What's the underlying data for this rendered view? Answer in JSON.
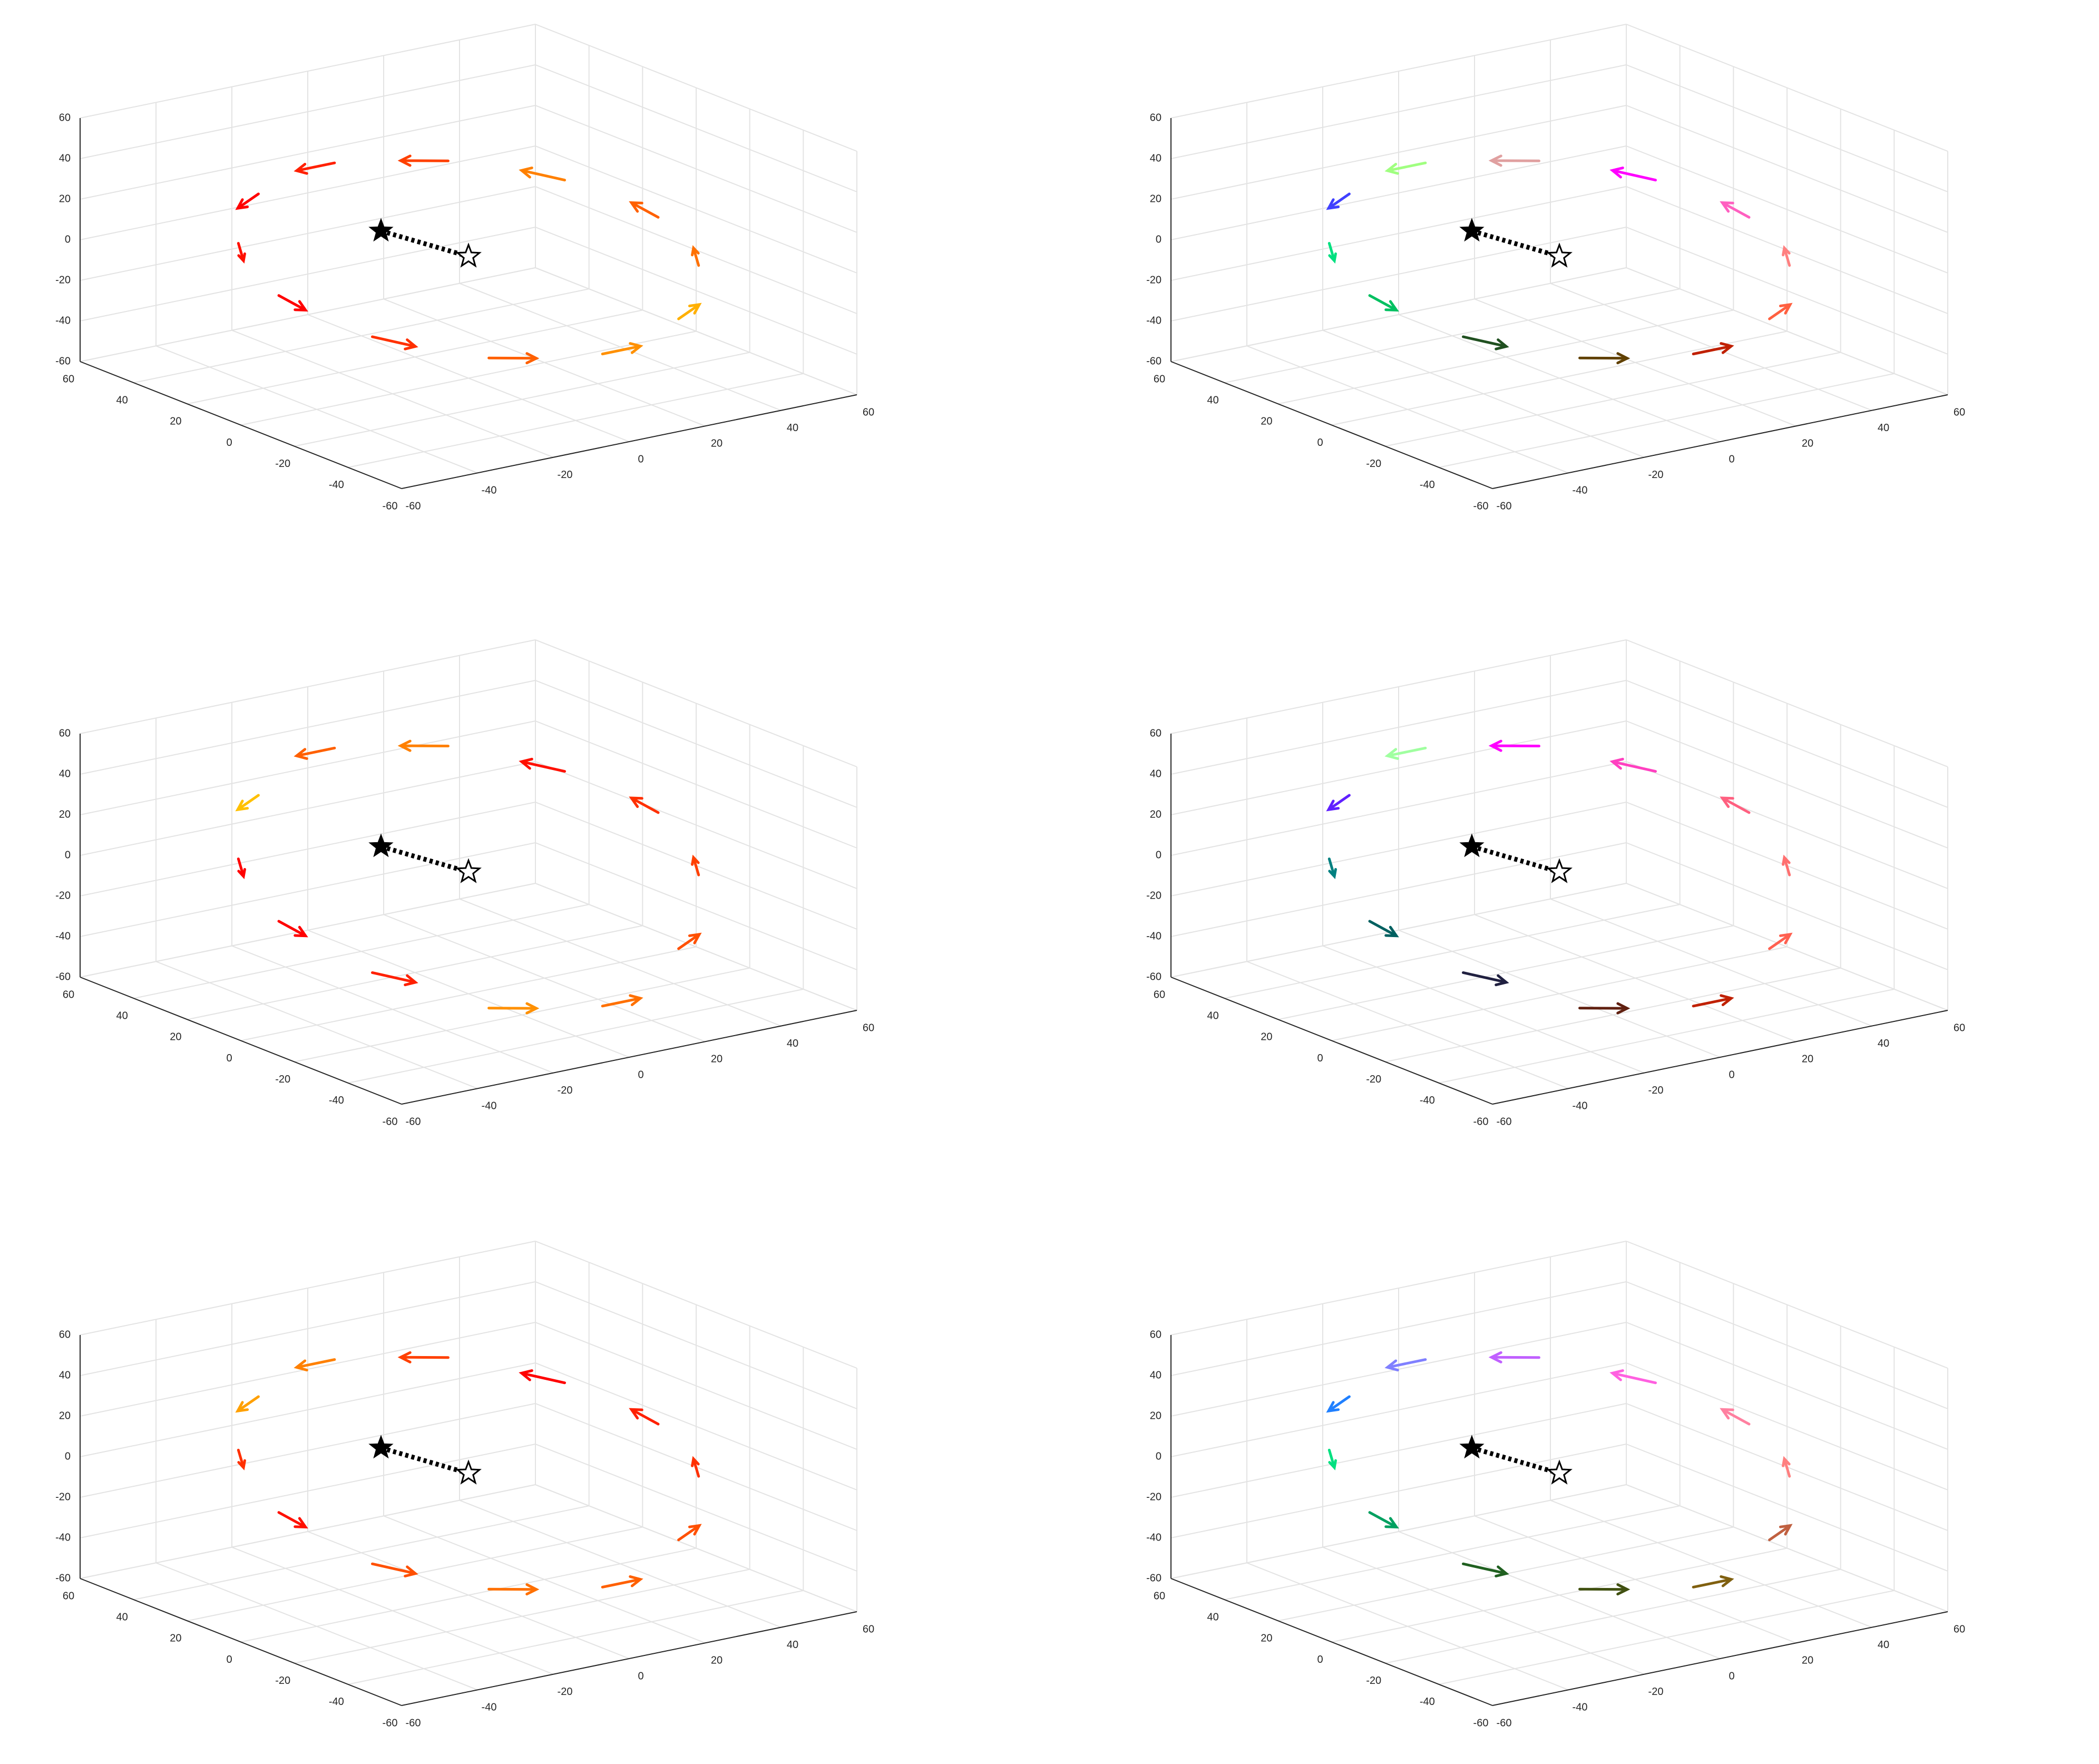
{
  "chart_data": [
    {
      "type": "quiver3",
      "grid": true,
      "xlim": [
        -60,
        60
      ],
      "ylim": [
        -60,
        60
      ],
      "zlim": [
        -60,
        60
      ],
      "xticks": [
        -60,
        -40,
        -20,
        0,
        20,
        40,
        60
      ],
      "yticks": [
        -60,
        -40,
        -20,
        0,
        20,
        40,
        60
      ],
      "zticks": [
        -60,
        -40,
        -20,
        0,
        20,
        40,
        60
      ],
      "start": [
        -4,
        27,
        0
      ],
      "end": [
        0,
        0,
        0
      ],
      "quiver": {
        "x": [
          50,
          43,
          25,
          0,
          -25,
          -43,
          -50,
          -43,
          -25,
          0,
          25,
          43
        ],
        "y": [
          0,
          25,
          43,
          50,
          43,
          25,
          0,
          -25,
          -43,
          -50,
          -43,
          -25
        ],
        "z": [
          0,
          8,
          15,
          20,
          18,
          10,
          0,
          -10,
          -18,
          -22,
          -18,
          -8
        ],
        "u": [
          0,
          -5,
          -9,
          -10,
          -9,
          -5,
          0,
          5,
          9,
          10,
          9,
          5
        ],
        "v": [
          10,
          9,
          5,
          0,
          -5,
          -9,
          -10,
          -9,
          -5,
          0,
          5,
          9
        ],
        "w": [
          2,
          2,
          1,
          0,
          -1,
          -2,
          -2,
          -2,
          -1,
          0,
          1,
          2
        ],
        "colors": [
          "#ff6000",
          "#ff8000",
          "#ff4000",
          "#ff2000",
          "#ff0000",
          "#ff1000",
          "#ff0000",
          "#ff3000",
          "#ff6000",
          "#ff9000",
          "#ffb000",
          "#ff7000"
        ]
      }
    },
    {
      "type": "quiver3",
      "grid": true,
      "xlim": [
        -60,
        60
      ],
      "ylim": [
        -60,
        60
      ],
      "zlim": [
        -60,
        60
      ],
      "xticks": [
        -60,
        -40,
        -20,
        0,
        20,
        40,
        60
      ],
      "yticks": [
        -60,
        -40,
        -20,
        0,
        20,
        40,
        60
      ],
      "zticks": [
        -60,
        -40,
        -20,
        0,
        20,
        40,
        60
      ],
      "start": [
        -4,
        27,
        0
      ],
      "end": [
        0,
        0,
        0
      ],
      "quiver": {
        "x": [
          50,
          43,
          25,
          0,
          -25,
          -43,
          -50,
          -43,
          -25,
          0,
          25,
          43
        ],
        "y": [
          0,
          25,
          43,
          50,
          43,
          25,
          0,
          -25,
          -43,
          -50,
          -43,
          -25
        ],
        "z": [
          0,
          8,
          15,
          20,
          18,
          10,
          0,
          -10,
          -18,
          -22,
          -18,
          -8
        ],
        "u": [
          0,
          -5,
          -9,
          -10,
          -9,
          -5,
          0,
          5,
          9,
          10,
          9,
          5
        ],
        "v": [
          10,
          9,
          5,
          0,
          -5,
          -9,
          -10,
          -9,
          -5,
          0,
          5,
          9
        ],
        "w": [
          2,
          2,
          1,
          0,
          -1,
          -2,
          -2,
          -2,
          -1,
          0,
          1,
          2
        ],
        "colors": [
          "#ff60c0",
          "#ff00ff",
          "#e0a0a0",
          "#a0ff80",
          "#4040ff",
          "#00e080",
          "#00c060",
          "#205020",
          "#604000",
          "#c02000",
          "#ff6040",
          "#ff8080"
        ]
      }
    },
    {
      "type": "quiver3",
      "grid": true,
      "xlim": [
        -60,
        60
      ],
      "ylim": [
        -60,
        60
      ],
      "zlim": [
        -60,
        60
      ],
      "xticks": [
        -60,
        -40,
        -20,
        0,
        20,
        40,
        60
      ],
      "yticks": [
        -60,
        -40,
        -20,
        0,
        20,
        40,
        60
      ],
      "zticks": [
        -60,
        -40,
        -20,
        0,
        20,
        40,
        60
      ],
      "start": [
        -4,
        27,
        0
      ],
      "end": [
        0,
        0,
        0
      ],
      "quiver": {
        "x": [
          50,
          43,
          25,
          0,
          -25,
          -43,
          -50,
          -43,
          -25,
          0,
          25,
          43
        ],
        "y": [
          0,
          25,
          43,
          50,
          43,
          25,
          0,
          -25,
          -43,
          -50,
          -43,
          -25
        ],
        "z": [
          10,
          20,
          30,
          35,
          25,
          10,
          -5,
          -20,
          -35,
          -40,
          -25,
          -5
        ],
        "u": [
          0,
          -5,
          -9,
          -10,
          -9,
          -5,
          0,
          5,
          9,
          10,
          9,
          5
        ],
        "v": [
          10,
          9,
          5,
          0,
          -5,
          -9,
          -10,
          -9,
          -5,
          0,
          5,
          9
        ],
        "w": [
          2,
          2,
          1,
          0,
          -1,
          -2,
          -2,
          -2,
          -1,
          0,
          1,
          2
        ],
        "colors": [
          "#ff3000",
          "#ff1000",
          "#ff8000",
          "#ff6000",
          "#ffc000",
          "#ff0000",
          "#ff0000",
          "#ff2000",
          "#ff9000",
          "#ff7000",
          "#ff5000",
          "#ff4000"
        ]
      }
    },
    {
      "type": "quiver3",
      "grid": true,
      "xlim": [
        -60,
        60
      ],
      "ylim": [
        -60,
        60
      ],
      "zlim": [
        -60,
        60
      ],
      "xticks": [
        -60,
        -40,
        -20,
        0,
        20,
        40,
        60
      ],
      "yticks": [
        -60,
        -40,
        -20,
        0,
        20,
        40,
        60
      ],
      "zticks": [
        -60,
        -40,
        -20,
        0,
        20,
        40,
        60
      ],
      "start": [
        -4,
        27,
        0
      ],
      "end": [
        0,
        0,
        0
      ],
      "quiver": {
        "x": [
          50,
          43,
          25,
          0,
          -25,
          -43,
          -50,
          -43,
          -25,
          0,
          25,
          43
        ],
        "y": [
          0,
          25,
          43,
          50,
          43,
          25,
          0,
          -25,
          -43,
          -50,
          -43,
          -25
        ],
        "z": [
          10,
          20,
          30,
          35,
          25,
          10,
          -5,
          -20,
          -35,
          -40,
          -25,
          -5
        ],
        "u": [
          0,
          -5,
          -9,
          -10,
          -9,
          -5,
          0,
          5,
          9,
          10,
          9,
          5
        ],
        "v": [
          10,
          9,
          5,
          0,
          -5,
          -9,
          -10,
          -9,
          -5,
          0,
          5,
          9
        ],
        "w": [
          2,
          2,
          1,
          0,
          -1,
          -2,
          -2,
          -2,
          -1,
          0,
          1,
          2
        ],
        "colors": [
          "#ff6080",
          "#ff40c0",
          "#ff00ff",
          "#a0ffa0",
          "#6020ff",
          "#008080",
          "#006060",
          "#202040",
          "#602010",
          "#c02000",
          "#ff6050",
          "#ff7070"
        ]
      }
    },
    {
      "type": "quiver3",
      "grid": true,
      "xlim": [
        -60,
        60
      ],
      "ylim": [
        -60,
        60
      ],
      "zlim": [
        -60,
        60
      ],
      "xticks": [
        -60,
        -40,
        -20,
        0,
        20,
        40,
        60
      ],
      "yticks": [
        -60,
        -40,
        -20,
        0,
        20,
        40,
        60
      ],
      "zticks": [
        -60,
        -40,
        -20,
        0,
        20,
        40,
        60
      ],
      "start": [
        -4,
        27,
        0
      ],
      "end": [
        0,
        0,
        0
      ],
      "quiver": {
        "x": [
          50,
          43,
          25,
          0,
          -25,
          -43,
          -50,
          -43,
          -25,
          0,
          25,
          43
        ],
        "y": [
          0,
          25,
          43,
          50,
          43,
          25,
          0,
          -25,
          -43,
          -50,
          -43,
          -25
        ],
        "z": [
          5,
          15,
          25,
          30,
          25,
          15,
          0,
          -15,
          -25,
          -30,
          -20,
          -5
        ],
        "u": [
          0,
          -5,
          -9,
          -10,
          -9,
          -5,
          0,
          5,
          9,
          10,
          9,
          5
        ],
        "v": [
          10,
          9,
          5,
          0,
          -5,
          -9,
          -10,
          -9,
          -5,
          0,
          5,
          9
        ],
        "w": [
          2,
          2,
          1,
          0,
          -1,
          -2,
          -2,
          -2,
          -1,
          0,
          1,
          2
        ],
        "colors": [
          "#ff2000",
          "#ff0000",
          "#ff4000",
          "#ff8000",
          "#ffa000",
          "#ff3000",
          "#ff1000",
          "#ff5000",
          "#ff7000",
          "#ff6000",
          "#ff5000",
          "#ff3000"
        ]
      }
    },
    {
      "type": "quiver3",
      "grid": true,
      "xlim": [
        -60,
        60
      ],
      "ylim": [
        -60,
        60
      ],
      "zlim": [
        -60,
        60
      ],
      "xticks": [
        -60,
        -40,
        -20,
        0,
        20,
        40,
        60
      ],
      "yticks": [
        -60,
        -40,
        -20,
        0,
        20,
        40,
        60
      ],
      "zticks": [
        -60,
        -40,
        -20,
        0,
        20,
        40,
        60
      ],
      "start": [
        -4,
        27,
        0
      ],
      "end": [
        0,
        0,
        0
      ],
      "quiver": {
        "x": [
          50,
          43,
          25,
          0,
          -25,
          -43,
          -50,
          -43,
          -25,
          0,
          25,
          43
        ],
        "y": [
          0,
          25,
          43,
          50,
          43,
          25,
          0,
          -25,
          -43,
          -50,
          -43,
          -25
        ],
        "z": [
          5,
          15,
          25,
          30,
          25,
          15,
          0,
          -15,
          -25,
          -30,
          -20,
          -5
        ],
        "u": [
          0,
          -5,
          -9,
          -10,
          -9,
          -5,
          0,
          5,
          9,
          10,
          9,
          5
        ],
        "v": [
          10,
          9,
          5,
          0,
          -5,
          -9,
          -10,
          -9,
          -5,
          0,
          5,
          9
        ],
        "w": [
          2,
          2,
          1,
          0,
          -1,
          -2,
          -2,
          -2,
          -1,
          0,
          1,
          2
        ],
        "colors": [
          "#ff80a0",
          "#ff60e0",
          "#c060ff",
          "#8080ff",
          "#2080ff",
          "#00e080",
          "#00a060",
          "#206020",
          "#405010",
          "#806010",
          "#c06040",
          "#ff8080"
        ]
      }
    }
  ]
}
